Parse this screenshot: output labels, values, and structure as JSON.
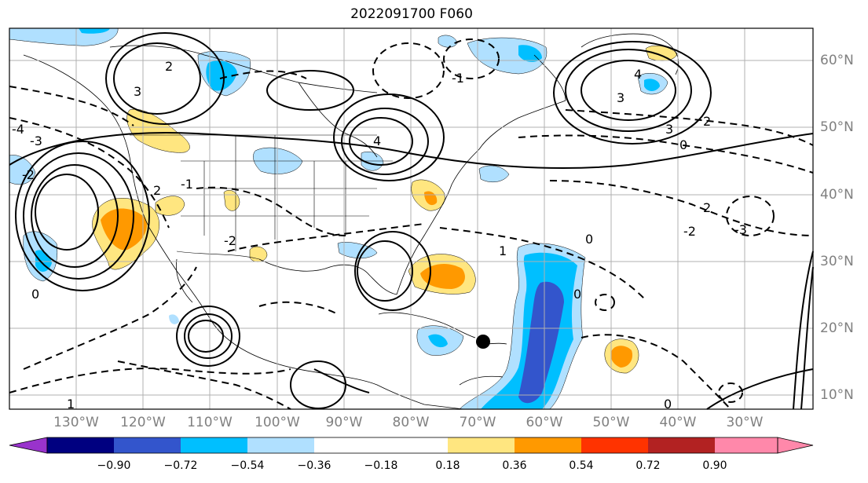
{
  "title": "2022091700 F060",
  "map": {
    "lon_labels": [
      "130°W",
      "120°W",
      "110°W",
      "100°W",
      "90°W",
      "80°W",
      "70°W",
      "60°W",
      "50°W",
      "40°W",
      "30°W"
    ],
    "lat_labels": [
      "60°N",
      "50°N",
      "40°N",
      "30°N",
      "20°N",
      "10°N"
    ],
    "contour_labels": [
      {
        "text": "2"
      },
      {
        "text": "3"
      },
      {
        "text": "4"
      },
      {
        "text": "3"
      },
      {
        "text": "2"
      },
      {
        "text": "0"
      },
      {
        "text": "1"
      },
      {
        "text": "-2"
      },
      {
        "text": "-2"
      },
      {
        "text": "-3"
      },
      {
        "text": "4"
      },
      {
        "text": "3"
      },
      {
        "text": "2"
      },
      {
        "text": "1"
      },
      {
        "text": "0"
      },
      {
        "text": "-2"
      },
      {
        "text": "-3"
      },
      {
        "text": "-1"
      },
      {
        "text": "0"
      },
      {
        "text": "-1"
      },
      {
        "text": "0"
      },
      {
        "text": "-4"
      },
      {
        "text": "2"
      },
      {
        "text": "0"
      }
    ],
    "cyclone_marker_color": "#000000"
  },
  "colorbar": {
    "colors": [
      "#9933cc",
      "#000080",
      "#3355cc",
      "#00bfff",
      "#b0e0ff",
      "#ffffff",
      "#ffe680",
      "#ff9900",
      "#ff3300",
      "#b22222",
      "#ff88aa"
    ],
    "ticks": [
      "−0.90",
      "−0.72",
      "−0.54",
      "−0.36",
      "−0.18",
      "0.18",
      "0.36",
      "0.54",
      "0.72",
      "0.90"
    ]
  }
}
